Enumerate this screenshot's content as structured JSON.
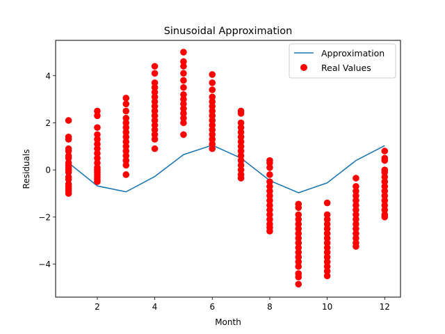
{
  "chart_data": {
    "type": "scatter",
    "title": "Sinusoidal Approximation",
    "xlabel": "Month",
    "ylabel": "Residuals",
    "xlim": [
      0.55,
      12.55
    ],
    "ylim": [
      -5.4,
      5.5
    ],
    "xticks": [
      2,
      4,
      6,
      8,
      10,
      12
    ],
    "yticks": [
      -4,
      -2,
      0,
      2,
      4
    ],
    "grid": false,
    "legend_position": "top-right",
    "series": [
      {
        "name": "Approximation",
        "kind": "line",
        "color": "#1f77b4",
        "x": [
          1,
          2,
          3,
          4,
          5,
          6,
          7,
          8,
          9,
          10,
          11,
          12
        ],
        "y": [
          0.3,
          -0.68,
          -0.93,
          -0.28,
          0.65,
          1.05,
          0.5,
          -0.45,
          -0.97,
          -0.55,
          0.4,
          1.03
        ]
      },
      {
        "name": "Real Values",
        "kind": "scatter",
        "color": "#ff0000",
        "points": [
          {
            "x": 1,
            "y": [
              2.1,
              1.4,
              1.3,
              0.9,
              0.8,
              0.6,
              0.5,
              0.3,
              0.2,
              0.1,
              0.0,
              -0.1,
              -0.3,
              -0.4,
              -0.6,
              -0.7,
              -0.8,
              -0.9,
              -1.0
            ]
          },
          {
            "x": 2,
            "y": [
              2.5,
              2.3,
              1.8,
              1.5,
              1.3,
              1.1,
              0.9,
              0.7,
              0.5,
              0.3,
              0.1,
              0.0,
              -0.1,
              -0.2,
              -0.3,
              -0.4,
              -0.5
            ]
          },
          {
            "x": 3,
            "y": [
              3.05,
              2.8,
              2.5,
              2.2,
              2.0,
              1.8,
              1.6,
              1.4,
              1.2,
              1.0,
              0.8,
              0.6,
              0.4,
              0.2,
              -0.2
            ]
          },
          {
            "x": 4,
            "y": [
              4.4,
              4.1,
              3.7,
              3.5,
              3.3,
              3.1,
              2.9,
              2.7,
              2.5,
              2.3,
              2.1,
              1.9,
              1.7,
              1.5,
              1.3,
              0.9
            ]
          },
          {
            "x": 5,
            "y": [
              5.0,
              4.6,
              4.4,
              4.1,
              3.8,
              3.5,
              3.2,
              3.0,
              2.8,
              2.6,
              2.4,
              2.2,
              2.0,
              1.5
            ]
          },
          {
            "x": 6,
            "y": [
              4.05,
              3.7,
              3.4,
              3.1,
              2.9,
              2.7,
              2.5,
              2.3,
              2.1,
              1.9,
              1.7,
              1.5,
              1.3,
              1.1,
              0.9
            ]
          },
          {
            "x": 7,
            "y": [
              2.5,
              2.4,
              2.0,
              1.8,
              1.6,
              1.4,
              1.2,
              1.0,
              0.8,
              0.6,
              0.4,
              0.2,
              0.0,
              -0.2,
              -0.35
            ]
          },
          {
            "x": 8,
            "y": [
              0.4,
              0.3,
              0.1,
              -0.2,
              -0.5,
              -0.7,
              -0.9,
              -1.1,
              -1.3,
              -1.5,
              -1.7,
              -1.9,
              -2.1,
              -2.3,
              -2.45,
              -2.6
            ]
          },
          {
            "x": 9,
            "y": [
              -1.45,
              -1.6,
              -1.9,
              -2.1,
              -2.3,
              -2.5,
              -2.7,
              -2.9,
              -3.1,
              -3.3,
              -3.5,
              -3.7,
              -3.9,
              -4.1,
              -4.4,
              -4.55,
              -4.85
            ]
          },
          {
            "x": 10,
            "y": [
              -1.4,
              -1.9,
              -2.1,
              -2.3,
              -2.5,
              -2.7,
              -2.9,
              -3.1,
              -3.3,
              -3.5,
              -3.7,
              -3.9,
              -4.1,
              -4.3,
              -4.5
            ]
          },
          {
            "x": 11,
            "y": [
              -0.35,
              -0.7,
              -0.9,
              -1.1,
              -1.3,
              -1.5,
              -1.7,
              -1.9,
              -2.1,
              -2.3,
              -2.5,
              -2.7,
              -2.9,
              -3.1,
              -3.25
            ]
          },
          {
            "x": 12,
            "y": [
              0.8,
              0.5,
              0.4,
              0.0,
              -0.1,
              -0.3,
              -0.5,
              -0.7,
              -0.9,
              -1.1,
              -1.3,
              -1.5,
              -1.7,
              -1.9,
              -2.0
            ]
          }
        ]
      }
    ]
  }
}
